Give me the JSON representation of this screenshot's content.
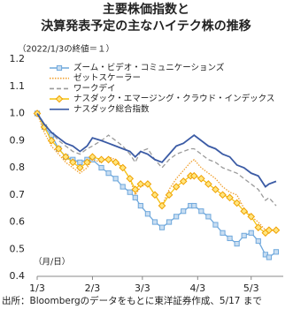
{
  "chart_data": {
    "type": "line",
    "title": [
      "主要株価指数と",
      "決算発表予定の主なハイテク株の推移"
    ],
    "annotations": [
      "（2022/1/3の終値＝１）",
      "（月/日）"
    ],
    "source": "出所：Bloombergのデータをもとに東洋証券作成、5/17 まで",
    "x": [
      0,
      4,
      8,
      12,
      16,
      20,
      24,
      28,
      31,
      36,
      40,
      44,
      48,
      52,
      55,
      58,
      62,
      66,
      70,
      74,
      78,
      82,
      86,
      88,
      92,
      96,
      100,
      104,
      108,
      112,
      116,
      120,
      124,
      128,
      130,
      134
    ],
    "xlim": [
      0,
      138
    ],
    "xticks": [
      {
        "value": 0,
        "label": "1/3"
      },
      {
        "value": 31,
        "label": "2/3"
      },
      {
        "value": 59,
        "label": "3/3"
      },
      {
        "value": 90,
        "label": "4/3"
      },
      {
        "value": 120,
        "label": "5/3"
      }
    ],
    "ylim": [
      0.4,
      1.2
    ],
    "yticks": [
      0.4,
      0.5,
      0.6,
      0.7,
      0.8,
      0.9,
      {
        "value": 1,
        "label": "1.0"
      },
      1.1,
      1.2
    ],
    "grid": false,
    "legend": "upper left",
    "series": [
      {
        "name": "ズーム・ビデオ・コミュニケーションズ",
        "color": "#6fa8dc",
        "marker": "square",
        "marker_fill": "#c9def2",
        "linestyle": "solid",
        "values": [
          1.0,
          0.95,
          0.92,
          0.87,
          0.84,
          0.83,
          0.82,
          0.83,
          0.83,
          0.8,
          0.78,
          0.76,
          0.73,
          0.71,
          0.69,
          0.66,
          0.63,
          0.6,
          0.58,
          0.6,
          0.62,
          0.64,
          0.66,
          0.66,
          0.64,
          0.62,
          0.59,
          0.56,
          0.54,
          0.52,
          0.55,
          0.56,
          0.53,
          0.48,
          0.47,
          0.49
        ]
      },
      {
        "name": "ゼットスケーラー",
        "color": "#f0a030",
        "marker": "none",
        "linestyle": "dotted",
        "values": [
          1.0,
          0.93,
          0.88,
          0.85,
          0.82,
          0.8,
          0.78,
          0.8,
          0.83,
          0.82,
          0.84,
          0.83,
          0.8,
          0.76,
          0.7,
          0.73,
          0.74,
          0.7,
          0.66,
          0.72,
          0.76,
          0.79,
          0.82,
          0.83,
          0.8,
          0.78,
          0.76,
          0.73,
          0.71,
          0.7,
          0.65,
          0.62,
          0.6,
          0.57,
          0.58,
          0.56
        ]
      },
      {
        "name": "ワークデイ",
        "color": "#9a9a9a",
        "marker": "none",
        "linestyle": "dashed",
        "values": [
          1.0,
          0.96,
          0.93,
          0.9,
          0.88,
          0.86,
          0.85,
          0.87,
          0.88,
          0.9,
          0.92,
          0.9,
          0.88,
          0.85,
          0.82,
          0.86,
          0.87,
          0.83,
          0.8,
          0.83,
          0.85,
          0.86,
          0.87,
          0.87,
          0.85,
          0.83,
          0.82,
          0.8,
          0.79,
          0.78,
          0.76,
          0.74,
          0.72,
          0.68,
          0.69,
          0.66
        ]
      },
      {
        "name": "ナスダック・エマージング・クラウド・インデックス",
        "color": "#f5c518",
        "marker": "diamond",
        "marker_fill": "#ffe680",
        "linestyle": "solid",
        "values": [
          1.0,
          0.95,
          0.9,
          0.87,
          0.84,
          0.82,
          0.8,
          0.82,
          0.84,
          0.83,
          0.83,
          0.82,
          0.8,
          0.76,
          0.72,
          0.74,
          0.74,
          0.7,
          0.66,
          0.7,
          0.73,
          0.75,
          0.77,
          0.77,
          0.76,
          0.74,
          0.72,
          0.7,
          0.69,
          0.67,
          0.64,
          0.62,
          0.58,
          0.56,
          0.57,
          0.57
        ]
      },
      {
        "name": "ナスダック総合指数",
        "color": "#3b5ba5",
        "marker": "none",
        "linestyle": "solid",
        "values": [
          1.0,
          0.96,
          0.93,
          0.91,
          0.89,
          0.88,
          0.86,
          0.88,
          0.91,
          0.9,
          0.89,
          0.88,
          0.87,
          0.86,
          0.84,
          0.86,
          0.85,
          0.83,
          0.82,
          0.85,
          0.88,
          0.89,
          0.91,
          0.92,
          0.9,
          0.88,
          0.87,
          0.85,
          0.84,
          0.81,
          0.8,
          0.78,
          0.77,
          0.73,
          0.74,
          0.75
        ]
      }
    ]
  }
}
